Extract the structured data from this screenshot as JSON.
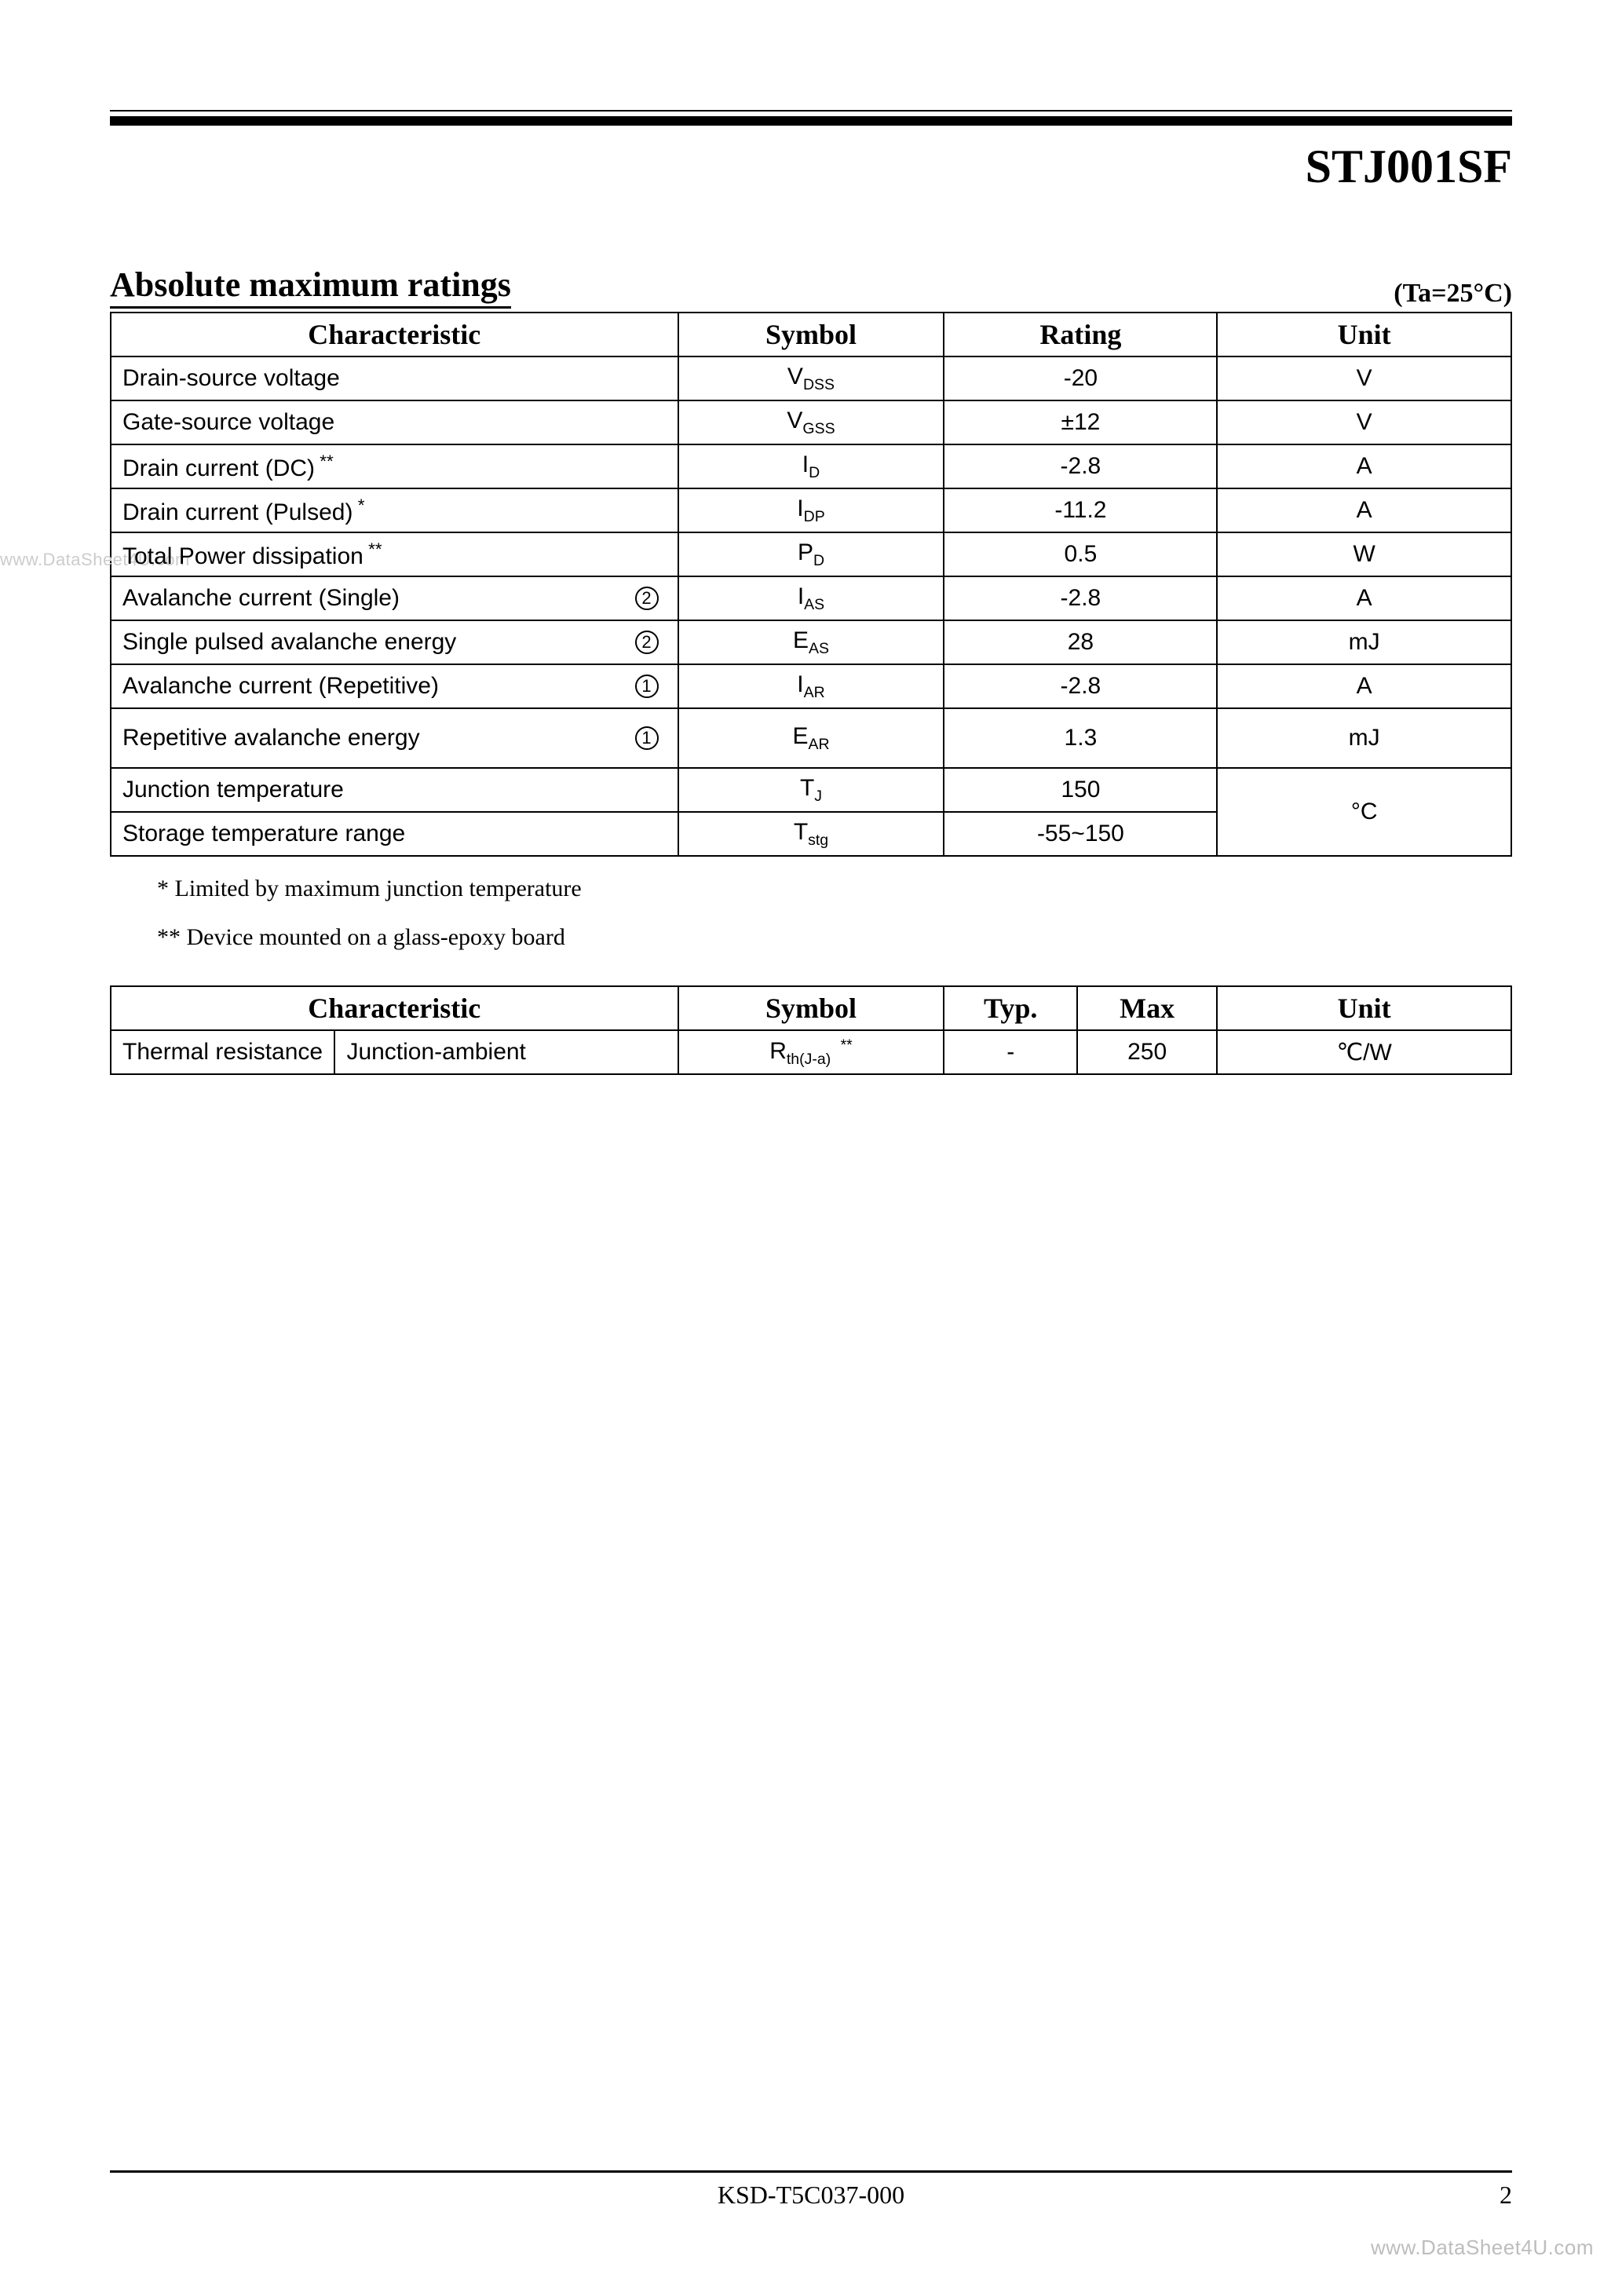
{
  "part_number": "STJ001SF",
  "section_title": "Absolute maximum ratings",
  "condition": "(Ta=25°C)",
  "ratings_table": {
    "col_widths_pct": [
      40.5,
      19,
      19.5,
      21
    ],
    "headers": [
      "Characteristic",
      "Symbol",
      "Rating",
      "Unit"
    ],
    "rows": [
      {
        "characteristic": "Drain-source voltage",
        "note_sup": "",
        "circled": "",
        "symbol_main": "V",
        "symbol_sub": "DSS",
        "rating": "-20",
        "unit": "V"
      },
      {
        "characteristic": "Gate-source voltage",
        "note_sup": "",
        "circled": "",
        "symbol_main": "V",
        "symbol_sub": "GSS",
        "rating": "±12",
        "unit": "V"
      },
      {
        "characteristic": "Drain current (DC)",
        "note_sup": "**",
        "circled": "",
        "symbol_main": "I",
        "symbol_sub": "D",
        "rating": "-2.8",
        "unit": "A"
      },
      {
        "characteristic": "Drain current (Pulsed)",
        "note_sup": "*",
        "circled": "",
        "symbol_main": "I",
        "symbol_sub": "DP",
        "rating": "-11.2",
        "unit": "A"
      },
      {
        "characteristic": "Total Power dissipation",
        "note_sup": "**",
        "circled": "",
        "symbol_main": "P",
        "symbol_sub": "D",
        "rating": "0.5",
        "unit": "W"
      },
      {
        "characteristic": "Avalanche current (Single)",
        "note_sup": "",
        "circled": "2",
        "symbol_main": "I",
        "symbol_sub": "AS",
        "rating": "-2.8",
        "unit": "A"
      },
      {
        "characteristic": "Single pulsed avalanche energy",
        "note_sup": "",
        "circled": "2",
        "symbol_main": "E",
        "symbol_sub": "AS",
        "rating": "28",
        "unit": "mJ"
      },
      {
        "characteristic": "Avalanche current (Repetitive)",
        "note_sup": "",
        "circled": "1",
        "symbol_main": "I",
        "symbol_sub": "AR",
        "rating": "-2.8",
        "unit": "A"
      },
      {
        "characteristic": "Repetitive avalanche energy",
        "note_sup": "",
        "circled": "1",
        "symbol_main": "E",
        "symbol_sub": "AR",
        "rating": "1.3",
        "unit": "mJ",
        "tall": true
      },
      {
        "characteristic": "Junction temperature",
        "note_sup": "",
        "circled": "",
        "symbol_main": "T",
        "symbol_sub": "J",
        "rating": "150",
        "unit": "°C",
        "unit_rowspan": 2
      },
      {
        "characteristic": "Storage temperature range",
        "note_sup": "",
        "circled": "",
        "symbol_main": "T",
        "symbol_sub": "stg",
        "rating": "-55~150",
        "unit_skip": true
      }
    ]
  },
  "footnotes": {
    "f1": "* Limited by maximum junction temperature",
    "f2": "** Device mounted on a glass-epoxy board"
  },
  "thermal_table": {
    "col_widths_pct": [
      16,
      24.5,
      19,
      9.5,
      10,
      21
    ],
    "headers": [
      "Characteristic",
      "Symbol",
      "Typ.",
      "Max",
      "Unit"
    ],
    "header_colspan_first": 2,
    "row": {
      "c1": "Thermal resistance",
      "c2": "Junction-ambient",
      "symbol_main": "R",
      "symbol_sub": "th(J-a)",
      "symbol_sup": "**",
      "typ": "-",
      "max": "250",
      "unit": "℃/W"
    }
  },
  "footer": {
    "doc_id": "KSD-T5C037-000",
    "page_num": "2"
  },
  "watermarks": {
    "left": "www.DataSheet4U.com",
    "bottom_right": "www.DataSheet4U.com"
  }
}
